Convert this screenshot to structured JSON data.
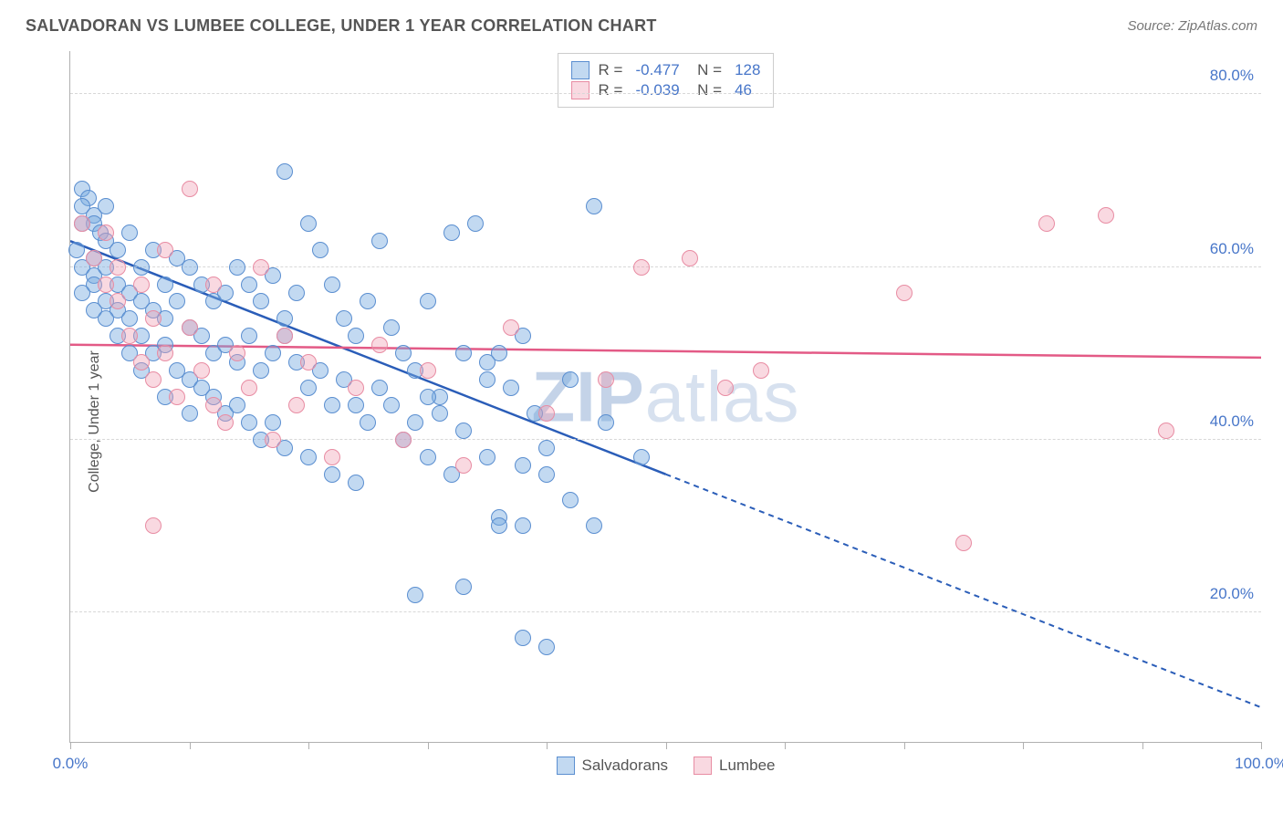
{
  "header": {
    "title": "SALVADORAN VS LUMBEE COLLEGE, UNDER 1 YEAR CORRELATION CHART",
    "source": "Source: ZipAtlas.com"
  },
  "watermark": {
    "pre": "ZIP",
    "post": "atlas"
  },
  "chart": {
    "type": "scatter",
    "ylabel": "College, Under 1 year",
    "xlim": [
      0,
      100
    ],
    "ylim": [
      5,
      85
    ],
    "xtick_positions": [
      0,
      10,
      20,
      30,
      40,
      50,
      60,
      70,
      80,
      90,
      100
    ],
    "xtick_labels": {
      "0": "0.0%",
      "100": "100.0%"
    },
    "ytick_positions": [
      20,
      40,
      60,
      80
    ],
    "ytick_labels": {
      "20": "20.0%",
      "40": "40.0%",
      "60": "60.0%",
      "80": "80.0%"
    },
    "grid_color": "#d8d8d8",
    "axis_color": "#b0b0b0",
    "background_color": "#ffffff",
    "label_fontsize": 16,
    "tick_fontsize": 17,
    "tick_color": "#4776c9",
    "marker_size": 18,
    "series": [
      {
        "name": "Salvadorans",
        "color_fill": "rgba(120,170,225,0.45)",
        "color_border": "#5a8ed0",
        "R": "-0.477",
        "N": "128",
        "trend": {
          "x1": 0,
          "y1": 63,
          "x2": 50,
          "y2": 36,
          "x2_ext": 100,
          "y2_ext": 9,
          "color": "#2a5db8",
          "width": 2.5
        },
        "points": [
          [
            1,
            69
          ],
          [
            1.5,
            68
          ],
          [
            1,
            67
          ],
          [
            2,
            66
          ],
          [
            2,
            65
          ],
          [
            0.5,
            62
          ],
          [
            1,
            65
          ],
          [
            3,
            67
          ],
          [
            2.5,
            64
          ],
          [
            2,
            61
          ],
          [
            3,
            63
          ],
          [
            1,
            60
          ],
          [
            2,
            59
          ],
          [
            4,
            62
          ],
          [
            3,
            60
          ],
          [
            5,
            64
          ],
          [
            4,
            58
          ],
          [
            2,
            58
          ],
          [
            1,
            57
          ],
          [
            3,
            56
          ],
          [
            6,
            60
          ],
          [
            5,
            57
          ],
          [
            4,
            55
          ],
          [
            2,
            55
          ],
          [
            3,
            54
          ],
          [
            7,
            62
          ],
          [
            6,
            56
          ],
          [
            5,
            54
          ],
          [
            8,
            58
          ],
          [
            4,
            52
          ],
          [
            6,
            52
          ],
          [
            7,
            55
          ],
          [
            9,
            61
          ],
          [
            8,
            54
          ],
          [
            5,
            50
          ],
          [
            10,
            60
          ],
          [
            9,
            56
          ],
          [
            7,
            50
          ],
          [
            11,
            58
          ],
          [
            10,
            53
          ],
          [
            8,
            51
          ],
          [
            12,
            56
          ],
          [
            6,
            48
          ],
          [
            11,
            52
          ],
          [
            13,
            57
          ],
          [
            9,
            48
          ],
          [
            14,
            60
          ],
          [
            12,
            50
          ],
          [
            10,
            47
          ],
          [
            15,
            58
          ],
          [
            13,
            51
          ],
          [
            11,
            46
          ],
          [
            16,
            56
          ],
          [
            14,
            49
          ],
          [
            8,
            45
          ],
          [
            17,
            59
          ],
          [
            15,
            52
          ],
          [
            12,
            45
          ],
          [
            18,
            54
          ],
          [
            16,
            48
          ],
          [
            10,
            43
          ],
          [
            19,
            57
          ],
          [
            17,
            50
          ],
          [
            13,
            43
          ],
          [
            20,
            65
          ],
          [
            18,
            52
          ],
          [
            14,
            44
          ],
          [
            21,
            62
          ],
          [
            19,
            49
          ],
          [
            15,
            42
          ],
          [
            22,
            58
          ],
          [
            20,
            46
          ],
          [
            16,
            40
          ],
          [
            23,
            54
          ],
          [
            21,
            48
          ],
          [
            17,
            42
          ],
          [
            24,
            52
          ],
          [
            22,
            44
          ],
          [
            18,
            39
          ],
          [
            25,
            56
          ],
          [
            23,
            47
          ],
          [
            26,
            63
          ],
          [
            24,
            44
          ],
          [
            20,
            38
          ],
          [
            27,
            53
          ],
          [
            25,
            42
          ],
          [
            28,
            50
          ],
          [
            26,
            46
          ],
          [
            22,
            36
          ],
          [
            29,
            48
          ],
          [
            27,
            44
          ],
          [
            30,
            56
          ],
          [
            28,
            40
          ],
          [
            24,
            35
          ],
          [
            31,
            45
          ],
          [
            32,
            64
          ],
          [
            29,
            42
          ],
          [
            33,
            50
          ],
          [
            30,
            38
          ],
          [
            34,
            65
          ],
          [
            31,
            43
          ],
          [
            35,
            47
          ],
          [
            32,
            36
          ],
          [
            36,
            50
          ],
          [
            33,
            41
          ],
          [
            37,
            46
          ],
          [
            38,
            52
          ],
          [
            35,
            38
          ],
          [
            39,
            43
          ],
          [
            40,
            39
          ],
          [
            36,
            31
          ],
          [
            42,
            47
          ],
          [
            38,
            30
          ],
          [
            44,
            67
          ],
          [
            40,
            36
          ],
          [
            45,
            42
          ],
          [
            42,
            33
          ],
          [
            48,
            38
          ],
          [
            44,
            30
          ],
          [
            33,
            23
          ],
          [
            38,
            17
          ],
          [
            40,
            16
          ],
          [
            29,
            22
          ],
          [
            36,
            30
          ],
          [
            38,
            37
          ],
          [
            35,
            49
          ],
          [
            30,
            45
          ],
          [
            18,
            71
          ]
        ]
      },
      {
        "name": "Lumbee",
        "color_fill": "rgba(240,160,180,0.40)",
        "color_border": "#e88ca3",
        "R": "-0.039",
        "N": "46",
        "trend": {
          "x1": 0,
          "y1": 51,
          "x2": 100,
          "y2": 49.5,
          "color": "#e35a86",
          "width": 2.5
        },
        "points": [
          [
            1,
            65
          ],
          [
            2,
            61
          ],
          [
            3,
            58
          ],
          [
            3,
            64
          ],
          [
            4,
            60
          ],
          [
            4,
            56
          ],
          [
            5,
            52
          ],
          [
            6,
            58
          ],
          [
            6,
            49
          ],
          [
            7,
            54
          ],
          [
            7,
            47
          ],
          [
            8,
            62
          ],
          [
            8,
            50
          ],
          [
            9,
            45
          ],
          [
            10,
            69
          ],
          [
            10,
            53
          ],
          [
            11,
            48
          ],
          [
            12,
            44
          ],
          [
            12,
            58
          ],
          [
            13,
            42
          ],
          [
            14,
            50
          ],
          [
            15,
            46
          ],
          [
            16,
            60
          ],
          [
            17,
            40
          ],
          [
            18,
            52
          ],
          [
            19,
            44
          ],
          [
            20,
            49
          ],
          [
            22,
            38
          ],
          [
            24,
            46
          ],
          [
            26,
            51
          ],
          [
            28,
            40
          ],
          [
            30,
            48
          ],
          [
            33,
            37
          ],
          [
            37,
            53
          ],
          [
            40,
            43
          ],
          [
            45,
            47
          ],
          [
            48,
            60
          ],
          [
            52,
            61
          ],
          [
            55,
            46
          ],
          [
            58,
            48
          ],
          [
            70,
            57
          ],
          [
            75,
            28
          ],
          [
            82,
            65
          ],
          [
            87,
            66
          ],
          [
            92,
            41
          ],
          [
            7,
            30
          ]
        ]
      }
    ],
    "legend_bottom": [
      {
        "label": "Salvadorans",
        "swatch": "blue"
      },
      {
        "label": "Lumbee",
        "swatch": "pink"
      }
    ]
  }
}
